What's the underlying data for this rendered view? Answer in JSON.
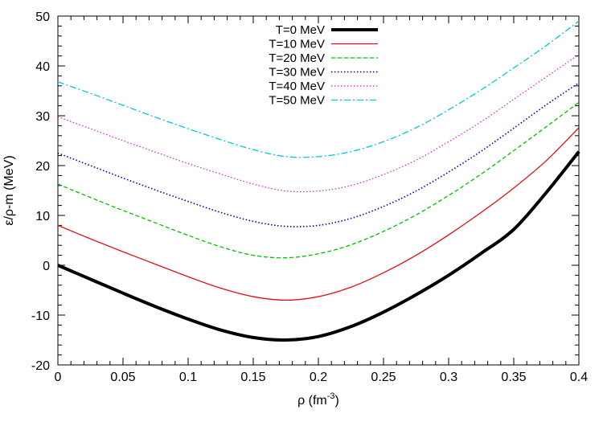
{
  "chart_data": {
    "type": "line",
    "title": "",
    "xlabel": "ρ (fm",
    "xlabel_sup": "-3",
    "xlabel_suffix": ")",
    "ylabel": "ε/ρ-m (MeV)",
    "xlim": [
      0,
      0.4
    ],
    "ylim": [
      -20,
      50
    ],
    "x_ticks": [
      0,
      0.05,
      0.1,
      0.15,
      0.2,
      0.25,
      0.3,
      0.35,
      0.4
    ],
    "x_tick_labels": [
      "0",
      "0.05",
      "0.1",
      "0.15",
      "0.2",
      "0.25",
      "0.3",
      "0.35",
      "0.4"
    ],
    "y_ticks": [
      -20,
      -10,
      0,
      10,
      20,
      30,
      40,
      50
    ],
    "y_tick_labels": [
      "-20",
      "-10",
      "0",
      "10",
      "20",
      "30",
      "40",
      "50"
    ],
    "grid": false,
    "legend_position": "top-center",
    "x": [
      0,
      0.025,
      0.05,
      0.075,
      0.1,
      0.125,
      0.15,
      0.175,
      0.2,
      0.225,
      0.25,
      0.275,
      0.3,
      0.325,
      0.35,
      0.375,
      0.4
    ],
    "series": [
      {
        "name": "T=0 MeV",
        "color": "#000000",
        "style": "solid",
        "width": 4,
        "values": [
          0,
          -2.8,
          -5.6,
          -8.3,
          -10.8,
          -13.0,
          -14.5,
          -15.0,
          -14.3,
          -12.3,
          -9.4,
          -5.9,
          -2.0,
          2.4,
          7.2,
          14.6,
          22.8
        ]
      },
      {
        "name": "T=10 MeV",
        "color": "#e01010",
        "style": "solid",
        "width": 1.3,
        "values": [
          8.0,
          5.3,
          2.7,
          0.2,
          -2.3,
          -4.6,
          -6.3,
          -7.0,
          -6.3,
          -4.4,
          -1.5,
          2.0,
          6.1,
          10.6,
          15.5,
          21.0,
          27.6
        ]
      },
      {
        "name": "T=20 MeV",
        "color": "#00c000",
        "style": "dashed",
        "width": 1.3,
        "values": [
          16.3,
          13.6,
          11.0,
          8.5,
          6.0,
          3.7,
          2.0,
          1.5,
          2.3,
          4.1,
          6.8,
          10.1,
          14.0,
          18.3,
          23.0,
          27.8,
          32.7
        ]
      },
      {
        "name": "T=30 MeV",
        "color": "#0000b0",
        "style": "dotted",
        "width": 1.6,
        "values": [
          22.5,
          20.0,
          17.5,
          15.1,
          12.8,
          10.6,
          8.8,
          7.8,
          8.0,
          9.4,
          11.8,
          14.9,
          18.7,
          22.9,
          27.5,
          32.2,
          36.6
        ]
      },
      {
        "name": "T=40 MeV",
        "color": "#d020d0",
        "style": "dotted",
        "width": 1.2,
        "values": [
          29.8,
          27.4,
          25.0,
          22.7,
          20.4,
          18.3,
          16.3,
          14.9,
          14.9,
          16.0,
          18.2,
          21.1,
          24.8,
          28.8,
          33.3,
          37.8,
          42.3
        ]
      },
      {
        "name": "T=50 MeV",
        "color": "#00c8d8",
        "style": "dashdot",
        "width": 1.3,
        "values": [
          36.8,
          34.5,
          32.1,
          29.7,
          27.4,
          25.2,
          23.2,
          21.8,
          21.8,
          22.8,
          24.8,
          27.6,
          31.2,
          35.2,
          39.6,
          44.1,
          49.0
        ]
      }
    ]
  }
}
